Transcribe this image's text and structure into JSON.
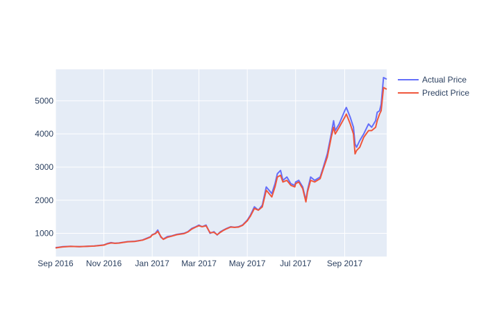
{
  "chart_data": {
    "type": "line",
    "colors": {
      "plot_bg": "#e5ecf6",
      "grid": "#ffffff",
      "text": "#2a3f5f",
      "actual": "#636efa",
      "predict": "#ef553b"
    },
    "grid": true,
    "legend_position": "top-right",
    "xlim": [
      "2016-09-01",
      "2017-10-24"
    ],
    "ylim": [
      300,
      5950
    ],
    "x_ticks": [
      {
        "date": "2016-09-01",
        "label": "Sep 2016"
      },
      {
        "date": "2016-11-01",
        "label": "Nov 2016"
      },
      {
        "date": "2017-01-01",
        "label": "Jan 2017"
      },
      {
        "date": "2017-03-01",
        "label": "Mar 2017"
      },
      {
        "date": "2017-05-01",
        "label": "May 2017"
      },
      {
        "date": "2017-07-01",
        "label": "Jul 2017"
      },
      {
        "date": "2017-09-01",
        "label": "Sep 2017"
      }
    ],
    "y_ticks": [
      {
        "value": 1000,
        "label": "1000"
      },
      {
        "value": 2000,
        "label": "2000"
      },
      {
        "value": 3000,
        "label": "3000"
      },
      {
        "value": 4000,
        "label": "4000"
      },
      {
        "value": 5000,
        "label": "5000"
      }
    ],
    "x": [
      "2016-09-01",
      "2016-09-05",
      "2016-09-10",
      "2016-09-20",
      "2016-10-01",
      "2016-10-10",
      "2016-10-20",
      "2016-10-28",
      "2016-11-01",
      "2016-11-05",
      "2016-11-10",
      "2016-11-15",
      "2016-11-20",
      "2016-11-25",
      "2016-12-01",
      "2016-12-10",
      "2016-12-15",
      "2016-12-20",
      "2016-12-25",
      "2016-12-30",
      "2017-01-01",
      "2017-01-05",
      "2017-01-08",
      "2017-01-12",
      "2017-01-15",
      "2017-01-20",
      "2017-01-25",
      "2017-02-01",
      "2017-02-10",
      "2017-02-15",
      "2017-02-20",
      "2017-02-25",
      "2017-03-01",
      "2017-03-05",
      "2017-03-10",
      "2017-03-15",
      "2017-03-20",
      "2017-03-24",
      "2017-03-28",
      "2017-04-01",
      "2017-04-05",
      "2017-04-10",
      "2017-04-15",
      "2017-04-20",
      "2017-04-25",
      "2017-05-01",
      "2017-05-05",
      "2017-05-10",
      "2017-05-15",
      "2017-05-20",
      "2017-05-25",
      "2017-06-01",
      "2017-06-05",
      "2017-06-08",
      "2017-06-12",
      "2017-06-15",
      "2017-06-20",
      "2017-06-25",
      "2017-06-30",
      "2017-07-01",
      "2017-07-05",
      "2017-07-10",
      "2017-07-14",
      "2017-07-16",
      "2017-07-20",
      "2017-07-25",
      "2017-08-01",
      "2017-08-05",
      "2017-08-10",
      "2017-08-15",
      "2017-08-18",
      "2017-08-20",
      "2017-08-25",
      "2017-09-01",
      "2017-09-03",
      "2017-09-08",
      "2017-09-12",
      "2017-09-14",
      "2017-09-16",
      "2017-09-20",
      "2017-09-25",
      "2017-10-01",
      "2017-10-05",
      "2017-10-10",
      "2017-10-12",
      "2017-10-15",
      "2017-10-17",
      "2017-10-20",
      "2017-10-24"
    ],
    "series": [
      {
        "name": "Actual Price",
        "values": [
          570,
          580,
          600,
          610,
          600,
          610,
          620,
          640,
          650,
          690,
          720,
          700,
          710,
          730,
          750,
          760,
          780,
          800,
          850,
          900,
          960,
          1000,
          1100,
          880,
          830,
          900,
          920,
          970,
          1000,
          1050,
          1150,
          1200,
          1250,
          1200,
          1250,
          1000,
          1050,
          950,
          1050,
          1100,
          1150,
          1200,
          1180,
          1200,
          1250,
          1400,
          1550,
          1800,
          1700,
          1850,
          2400,
          2200,
          2500,
          2800,
          2900,
          2600,
          2700,
          2500,
          2450,
          2550,
          2600,
          2400,
          2000,
          2300,
          2700,
          2600,
          2700,
          3000,
          3400,
          4000,
          4400,
          4100,
          4300,
          4700,
          4800,
          4500,
          4200,
          3700,
          3600,
          3800,
          4000,
          4300,
          4200,
          4400,
          4650,
          4700,
          4900,
          5700,
          5650
        ]
      },
      {
        "name": "Predict Price",
        "values": [
          560,
          575,
          590,
          605,
          600,
          605,
          615,
          635,
          645,
          680,
          710,
          700,
          705,
          725,
          745,
          755,
          775,
          795,
          840,
          890,
          950,
          990,
          1060,
          900,
          820,
          880,
          910,
          960,
          990,
          1040,
          1130,
          1190,
          1230,
          1200,
          1230,
          1020,
          1030,
          960,
          1030,
          1090,
          1140,
          1190,
          1180,
          1190,
          1240,
          1380,
          1520,
          1750,
          1700,
          1800,
          2300,
          2100,
          2400,
          2700,
          2750,
          2550,
          2600,
          2450,
          2400,
          2500,
          2550,
          2350,
          1950,
          2250,
          2600,
          2550,
          2650,
          2950,
          3300,
          3900,
          4200,
          4000,
          4200,
          4500,
          4600,
          4300,
          4000,
          3400,
          3500,
          3600,
          3900,
          4100,
          4100,
          4200,
          4400,
          4600,
          4700,
          5400,
          5350
        ]
      }
    ]
  }
}
